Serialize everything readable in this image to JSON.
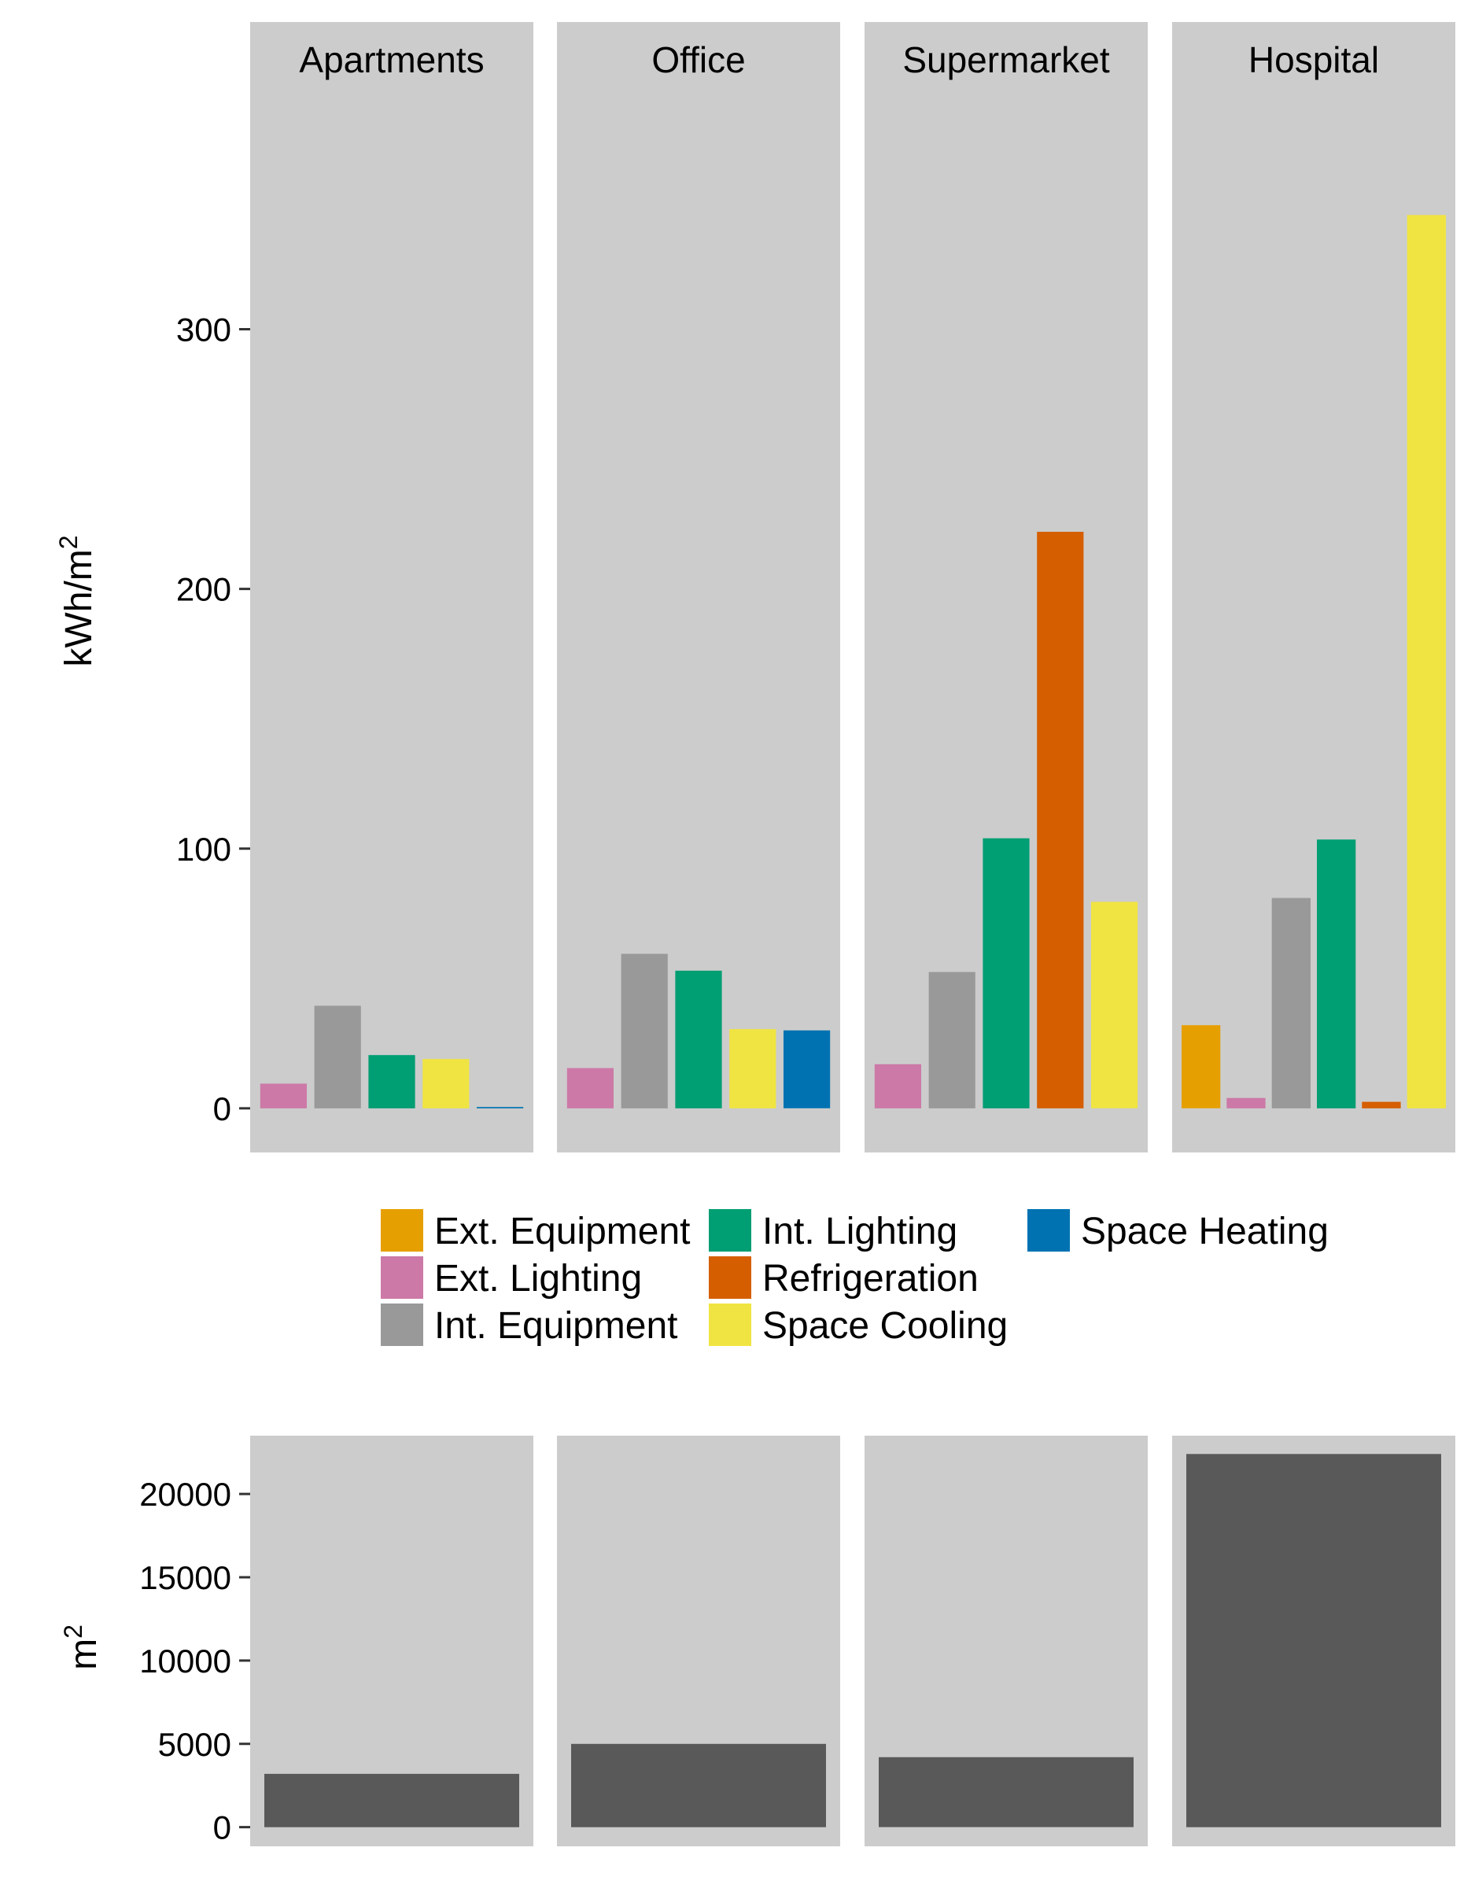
{
  "chart_data": [
    {
      "type": "bar",
      "facets": [
        "Apartments",
        "Office",
        "Supermarket",
        "Hospital"
      ],
      "categories": [
        "Ext. Equipment",
        "Ext. Lighting",
        "Int. Equipment",
        "Int. Lighting",
        "Refrigeration",
        "Space Cooling",
        "Space Heating"
      ],
      "colors": {
        "Ext. Equipment": "#E69F00",
        "Ext. Lighting": "#CC79A7",
        "Int. Equipment": "#999999",
        "Int. Lighting": "#009E73",
        "Refrigeration": "#D55E00",
        "Space Cooling": "#F0E442",
        "Space Heating": "#0072B2"
      },
      "panels": [
        {
          "facet": "Apartments",
          "bars": [
            {
              "category": "Ext. Lighting",
              "value": 9.5
            },
            {
              "category": "Int. Equipment",
              "value": 39.5
            },
            {
              "category": "Int. Lighting",
              "value": 20.5
            },
            {
              "category": "Space Cooling",
              "value": 19
            },
            {
              "category": "Space Heating",
              "value": 0.5
            }
          ]
        },
        {
          "facet": "Office",
          "bars": [
            {
              "category": "Ext. Lighting",
              "value": 15.5
            },
            {
              "category": "Int. Equipment",
              "value": 59.5
            },
            {
              "category": "Int. Lighting",
              "value": 53
            },
            {
              "category": "Space Cooling",
              "value": 30.5
            },
            {
              "category": "Space Heating",
              "value": 30
            }
          ]
        },
        {
          "facet": "Supermarket",
          "bars": [
            {
              "category": "Ext. Lighting",
              "value": 17
            },
            {
              "category": "Int. Equipment",
              "value": 52.5
            },
            {
              "category": "Int. Lighting",
              "value": 104
            },
            {
              "category": "Refrigeration",
              "value": 222
            },
            {
              "category": "Space Cooling",
              "value": 79.5
            }
          ]
        },
        {
          "facet": "Hospital",
          "bars": [
            {
              "category": "Ext. Equipment",
              "value": 32
            },
            {
              "category": "Ext. Lighting",
              "value": 4
            },
            {
              "category": "Int. Equipment",
              "value": 81
            },
            {
              "category": "Int. Lighting",
              "value": 103.5
            },
            {
              "category": "Refrigeration",
              "value": 2.5
            },
            {
              "category": "Space Cooling",
              "value": 344
            }
          ]
        }
      ],
      "ylabel": "kWh/m",
      "ylabel_superscript": "2",
      "yticks": [
        0,
        100,
        200,
        300
      ],
      "ylim": [
        -17,
        388
      ],
      "legend": {
        "position": "bottom"
      }
    },
    {
      "type": "bar",
      "facets": [
        "Apartments",
        "Office",
        "Supermarket",
        "Hospital"
      ],
      "values": [
        3200,
        5000,
        4200,
        22400
      ],
      "color": "#595959",
      "ylabel": "m",
      "ylabel_superscript": "2",
      "yticks": [
        0,
        5000,
        10000,
        15000,
        20000
      ],
      "ytick_labels": [
        "0",
        "5000",
        "10000",
        "15000",
        "20000"
      ],
      "ylim": [
        -1150,
        23500
      ]
    }
  ]
}
